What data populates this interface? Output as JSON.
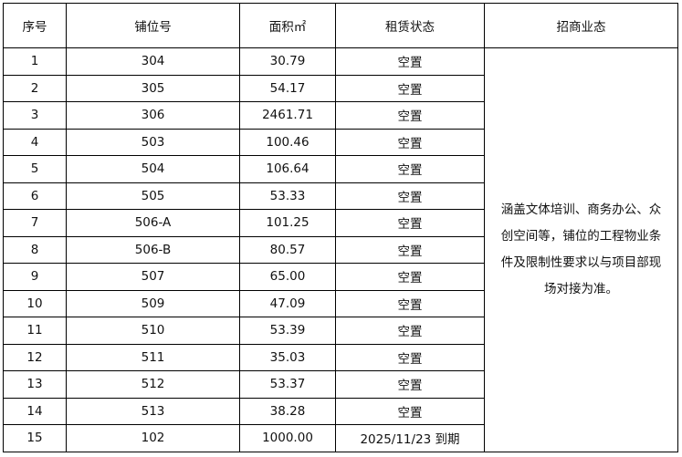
{
  "headers": [
    "序号",
    "铺位号",
    "面积㎡",
    "租赁状态",
    "招商业态"
  ],
  "rows": [
    {
      "no": "1",
      "unit": "304",
      "area": "30.79",
      "status": "空置"
    },
    {
      "no": "2",
      "unit": "305",
      "area": "54.17",
      "status": "空置"
    },
    {
      "no": "3",
      "unit": "306",
      "area": "2461.71",
      "status": "空置"
    },
    {
      "no": "4",
      "unit": "503",
      "area": "100.46",
      "status": "空置"
    },
    {
      "no": "5",
      "unit": "504",
      "area": "106.64",
      "status": "空置"
    },
    {
      "no": "6",
      "unit": "505",
      "area": "53.33",
      "status": "空置"
    },
    {
      "no": "7",
      "unit": "506-A",
      "area": "101.25",
      "status": "空置"
    },
    {
      "no": "8",
      "unit": "506-B",
      "area": "80.57",
      "status": "空置"
    },
    {
      "no": "9",
      "unit": "507",
      "area": "65.00",
      "status": "空置"
    },
    {
      "no": "10",
      "unit": "509",
      "area": "47.09",
      "status": "空置"
    },
    {
      "no": "11",
      "unit": "510",
      "area": "53.39",
      "status": "空置"
    },
    {
      "no": "12",
      "unit": "511",
      "area": "35.03",
      "status": "空置"
    },
    {
      "no": "13",
      "unit": "512",
      "area": "53.37",
      "status": "空置"
    },
    {
      "no": "14",
      "unit": "513",
      "area": "38.28",
      "status": "空置"
    },
    {
      "no": "15",
      "unit": "102",
      "area": "1000.00",
      "status": "2025/11/23 到期"
    }
  ],
  "business_type": "涵盖文体培训、商务办公、众创空间等，铺位的工程物业条件及限制性要求以与项目部现场对接为准。"
}
